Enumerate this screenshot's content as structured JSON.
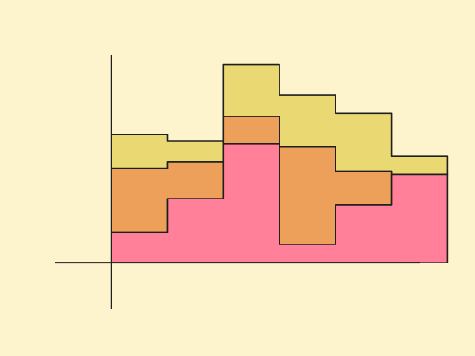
{
  "colors": {
    "background": "#FDF3CC",
    "ink": "#1E1E1E"
  },
  "chart_data": {
    "type": "area",
    "style": "stacked step area, hand-drawn sketch",
    "grid": false,
    "legend": "none",
    "title": "",
    "xlabel": "",
    "ylabel": "",
    "x_edges": [
      0,
      1,
      2,
      3,
      4,
      5
    ],
    "xlim": [
      -1,
      5.5
    ],
    "ylim": [
      -1.5,
      6.8
    ],
    "series": [
      {
        "color": "#FF8098",
        "values": [
          1.0,
          2.1,
          3.9,
          0.6,
          1.9,
          2.9
        ]
      },
      {
        "color": "#EDA05A",
        "values": [
          2.1,
          1.2,
          0.9,
          3.2,
          1.1,
          0.0
        ]
      },
      {
        "color": "#EAD872",
        "values": [
          1.1,
          0.7,
          1.7,
          1.7,
          1.9,
          0.6
        ]
      }
    ],
    "step_ends": [
      1.3,
      1.0,
      0.6,
      1.1,
      1.0,
      0.8
    ]
  }
}
